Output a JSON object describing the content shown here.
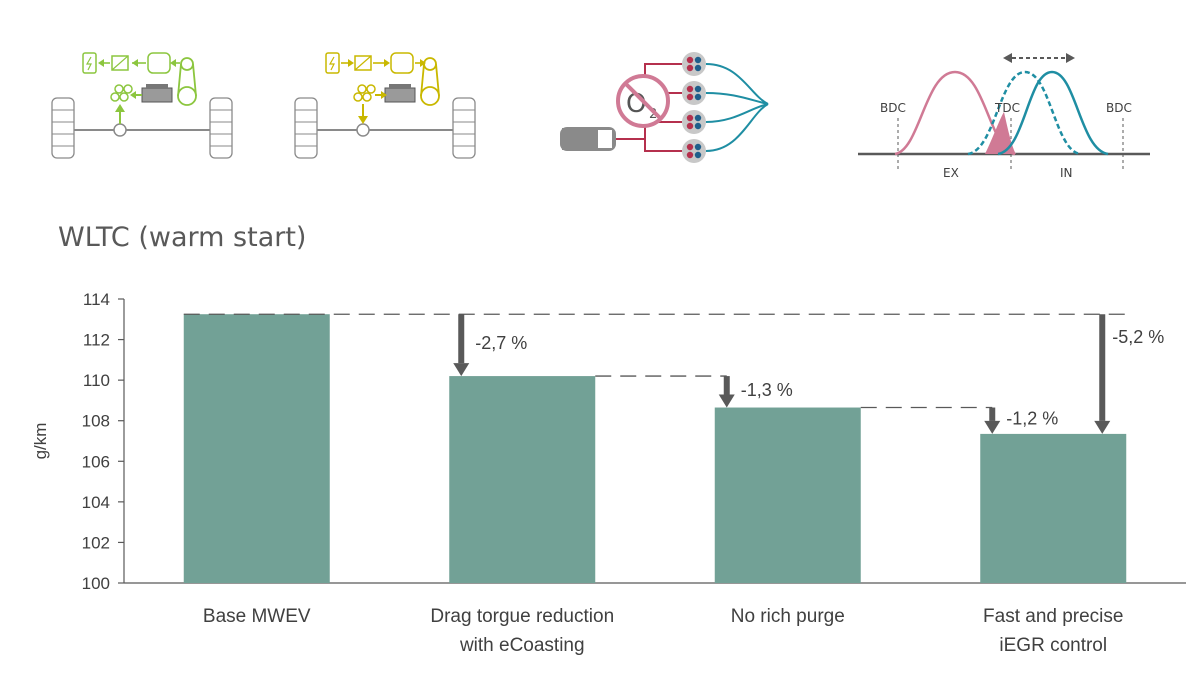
{
  "diagram_labels": {
    "bdc_left": "BDC",
    "tdc": "TDC",
    "bdc_right": "BDC",
    "ex": "EX",
    "in": "IN",
    "o2": "O",
    "o2_sub": "2"
  },
  "colors": {
    "bar": "#72A196",
    "arrow": "#595959",
    "axis": "#595959",
    "icon_green": "#8CC63F",
    "icon_yellow": "#C9B800",
    "icon_red": "#B5304D",
    "icon_teal": "#1F8EA3",
    "icon_pink": "#D07A95"
  },
  "chart_data": {
    "type": "bar",
    "title": "WLTC (warm start)",
    "ylabel": "g/km",
    "xlabel": "",
    "ylim": [
      100,
      114
    ],
    "yticks": [
      100,
      102,
      104,
      106,
      108,
      110,
      112,
      114
    ],
    "categories": [
      [
        "Base MWEV"
      ],
      [
        "Drag torgue reduction",
        "with eCoasting"
      ],
      [
        "No rich purge"
      ],
      [
        "Fast and precise",
        "iEGR control"
      ]
    ],
    "values": [
      113.25,
      110.2,
      108.65,
      107.35
    ],
    "annotations": [
      {
        "label": "-2,7 %",
        "from_bar": 0,
        "to_bar": 1
      },
      {
        "label": "-1,3 %",
        "from_bar": 1,
        "to_bar": 2
      },
      {
        "label": "-1,2 %",
        "from_bar": 2,
        "to_bar": 3
      },
      {
        "label": "-5,2 %",
        "from_bar": 0,
        "to_bar": 3,
        "total": true
      }
    ],
    "grid": false
  }
}
